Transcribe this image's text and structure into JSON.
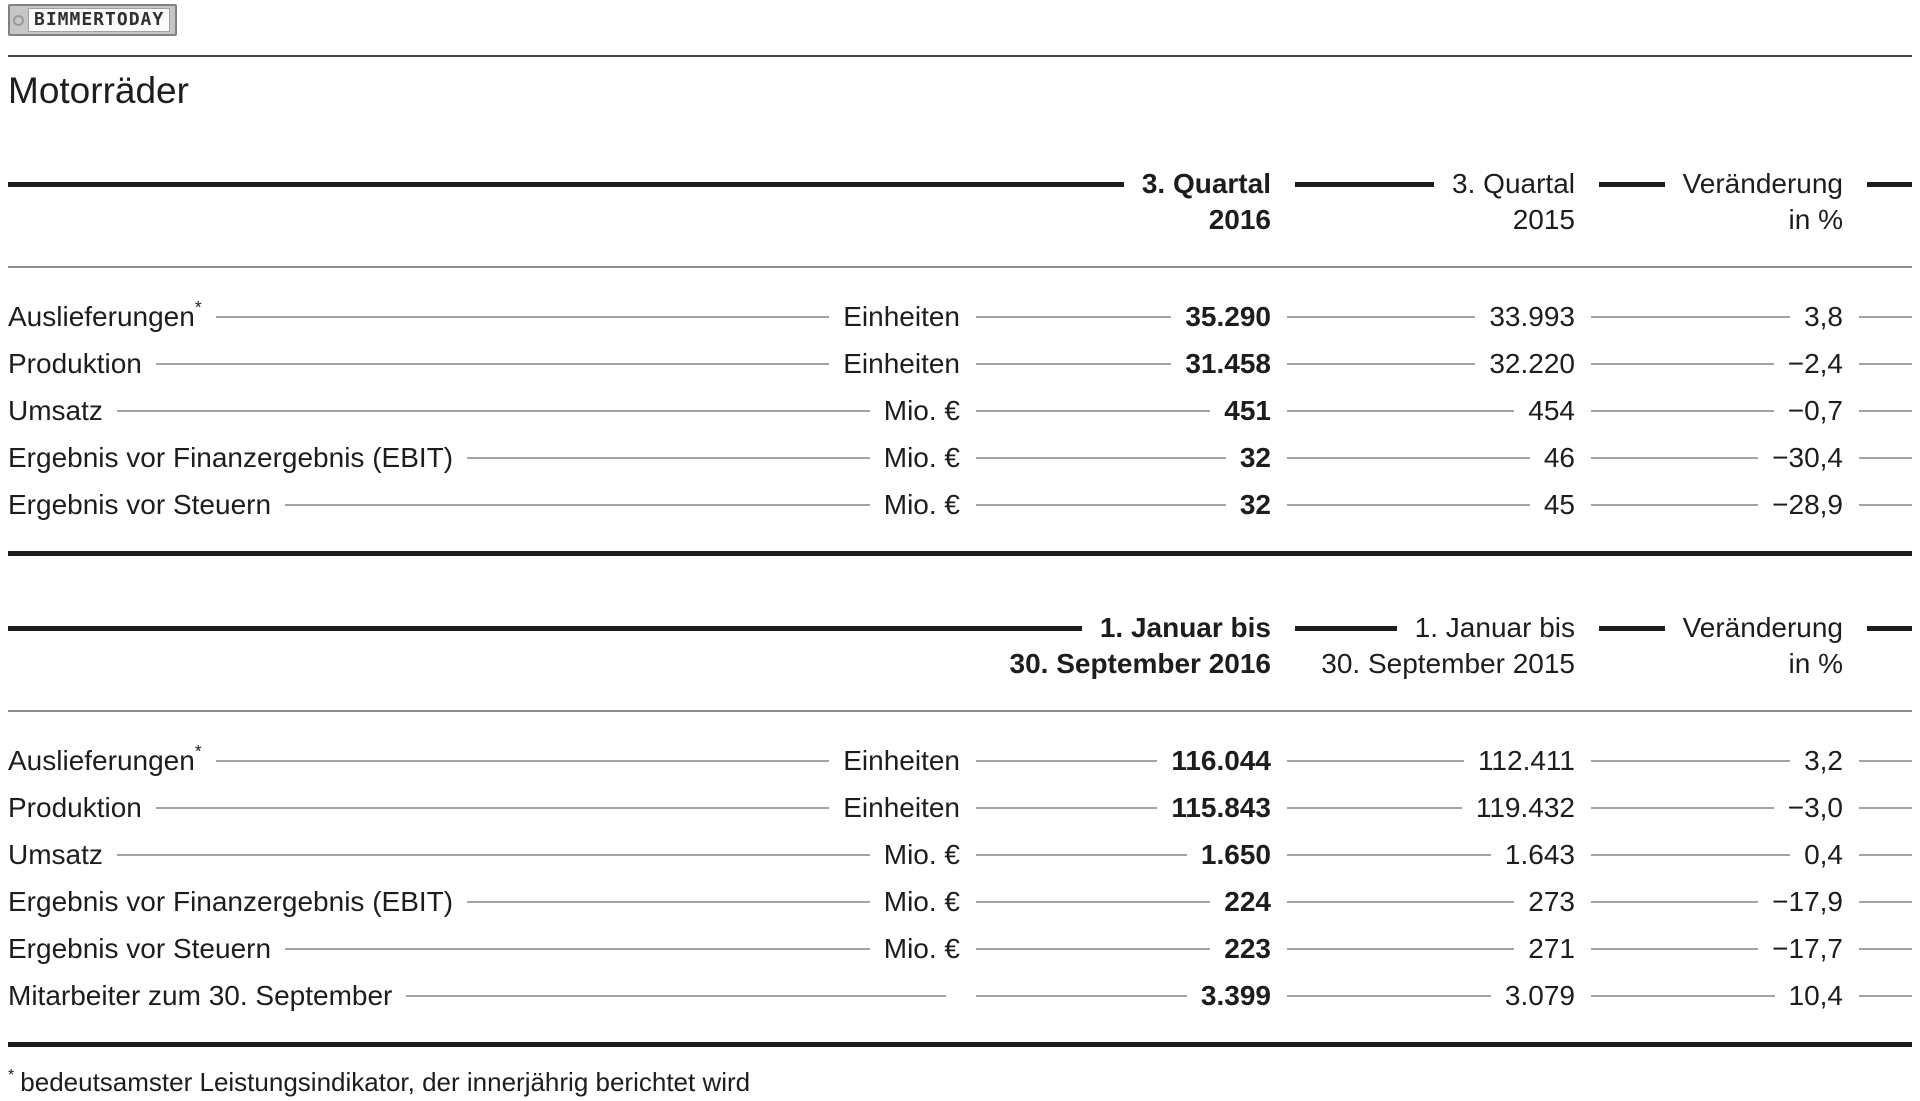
{
  "page": {
    "badge_label": "BIMMERTODAY",
    "title": "Motorräder",
    "footnote_marker": "*",
    "footnote_text": "bedeutsamster Leistungsindikator, der innerjährig berichtet wird"
  },
  "tables": [
    {
      "name": "q3",
      "columns": [
        {
          "line1": "3. Quartal",
          "line2": "2016",
          "emphasis": true
        },
        {
          "line1": "3. Quartal",
          "line2": "2015",
          "emphasis": false
        },
        {
          "line1": "Veränderung",
          "line2": "in %",
          "emphasis": false
        }
      ],
      "rows": [
        {
          "label": "Auslieferungen",
          "marker": "*",
          "unit": "Einheiten",
          "value_2016": "35.290",
          "value_2015": "33.993",
          "change_pct": "3,8"
        },
        {
          "label": "Produktion",
          "unit": "Einheiten",
          "value_2016": "31.458",
          "value_2015": "32.220",
          "change_pct": "−2,4"
        },
        {
          "label": "Umsatz",
          "unit": "Mio. €",
          "value_2016": "451",
          "value_2015": "454",
          "change_pct": "−0,7"
        },
        {
          "label": "Ergebnis vor Finanzergebnis (EBIT)",
          "unit": "Mio. €",
          "value_2016": "32",
          "value_2015": "46",
          "change_pct": "−30,4"
        },
        {
          "label": "Ergebnis vor Steuern",
          "unit": "Mio. €",
          "value_2016": "32",
          "value_2015": "45",
          "change_pct": "−28,9"
        }
      ]
    },
    {
      "name": "nine-months",
      "columns": [
        {
          "line1": "1. Januar bis",
          "line2": "30. September 2016",
          "emphasis": true
        },
        {
          "line1": "1. Januar bis",
          "line2": "30. September 2015",
          "emphasis": false
        },
        {
          "line1": "Veränderung",
          "line2": "in %",
          "emphasis": false
        }
      ],
      "rows": [
        {
          "label": "Auslieferungen",
          "marker": "*",
          "unit": "Einheiten",
          "value_2016": "116.044",
          "value_2015": "112.411",
          "change_pct": "3,2"
        },
        {
          "label": "Produktion",
          "unit": "Einheiten",
          "value_2016": "115.843",
          "value_2015": "119.432",
          "change_pct": "−3,0"
        },
        {
          "label": "Umsatz",
          "unit": "Mio. €",
          "value_2016": "1.650",
          "value_2015": "1.643",
          "change_pct": "0,4"
        },
        {
          "label": "Ergebnis vor Finanzergebnis (EBIT)",
          "unit": "Mio. €",
          "value_2016": "224",
          "value_2015": "273",
          "change_pct": "−17,9"
        },
        {
          "label": "Ergebnis vor Steuern",
          "unit": "Mio. €",
          "value_2016": "223",
          "value_2015": "271",
          "change_pct": "−17,7"
        },
        {
          "label": "Mitarbeiter zum 30. September",
          "unit": "",
          "value_2016": "3.399",
          "value_2015": "3.079",
          "change_pct": "10,4"
        }
      ]
    }
  ]
}
